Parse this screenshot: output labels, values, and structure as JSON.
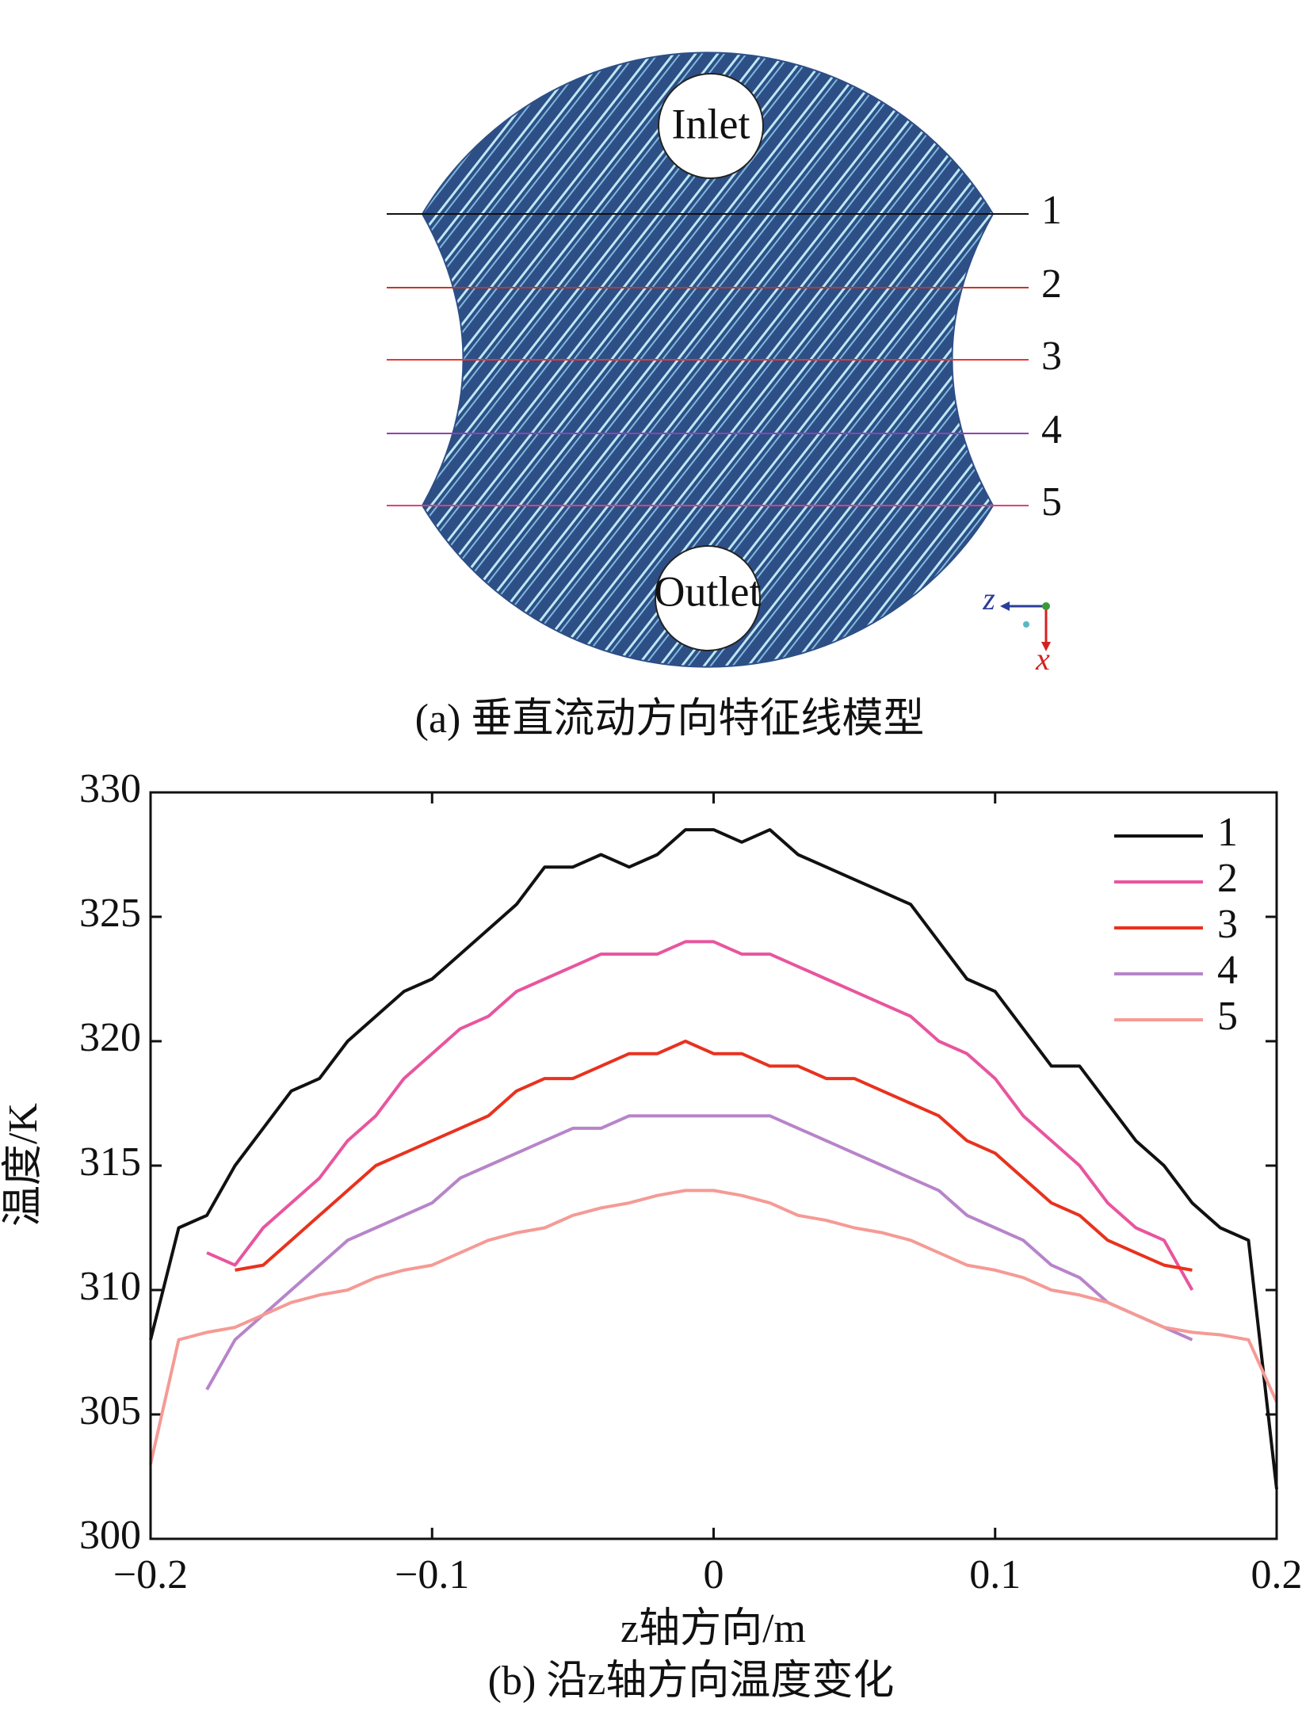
{
  "figure_a": {
    "labels": {
      "inlet": "Inlet",
      "outlet": "Outlet"
    },
    "lines": [
      {
        "label": "1",
        "color": "#111111"
      },
      {
        "label": "2",
        "color": "#c0392b"
      },
      {
        "label": "3",
        "color": "#e53935"
      },
      {
        "label": "4",
        "color": "#8e44ad"
      },
      {
        "label": "5",
        "color": "#e0407a"
      }
    ],
    "axes": {
      "z": "z",
      "x": "x"
    },
    "caption": "(a) 垂直流动方向特征线模型"
  },
  "chart_data": {
    "type": "line",
    "caption": "(b) 沿z轴方向温度变化",
    "xlabel": "z轴方向/m",
    "ylabel": "温度/K",
    "x": [
      -0.2,
      -0.19,
      -0.18,
      -0.17,
      -0.16,
      -0.15,
      -0.14,
      -0.13,
      -0.12,
      -0.11,
      -0.1,
      -0.09,
      -0.08,
      -0.07,
      -0.06,
      -0.05,
      -0.04,
      -0.03,
      -0.02,
      -0.01,
      0,
      0.01,
      0.02,
      0.03,
      0.04,
      0.05,
      0.06,
      0.07,
      0.08,
      0.09,
      0.1,
      0.11,
      0.12,
      0.13,
      0.14,
      0.15,
      0.16,
      0.17,
      0.18,
      0.19,
      0.2
    ],
    "series": [
      {
        "name": "1",
        "color": "#111111",
        "values": [
          308,
          312.5,
          313,
          315,
          316.5,
          318,
          318.5,
          320,
          321,
          322,
          322.5,
          323.5,
          324.5,
          325.5,
          327,
          327,
          327.5,
          327,
          327.5,
          328.5,
          328.5,
          328,
          328.5,
          327.5,
          327,
          326.5,
          326,
          325.5,
          324,
          322.5,
          322,
          320.5,
          319,
          319,
          317.5,
          316,
          315,
          313.5,
          312.5,
          312,
          302
        ]
      },
      {
        "name": "2",
        "color": "#e8559e",
        "values": [
          null,
          null,
          311.5,
          311,
          312.5,
          313.5,
          314.5,
          316,
          317,
          318.5,
          319.5,
          320.5,
          321,
          322,
          322.5,
          323,
          323.5,
          323.5,
          323.5,
          324,
          324,
          323.5,
          323.5,
          323,
          322.5,
          322,
          321.5,
          321,
          320,
          319.5,
          318.5,
          317,
          316,
          315,
          313.5,
          312.5,
          312,
          310,
          null,
          null,
          null
        ]
      },
      {
        "name": "3",
        "color": "#e8321e",
        "values": [
          null,
          null,
          null,
          310.8,
          311,
          312,
          313,
          314,
          315,
          315.5,
          316,
          316.5,
          317,
          318,
          318.5,
          318.5,
          319,
          319.5,
          319.5,
          320,
          319.5,
          319.5,
          319,
          319,
          318.5,
          318.5,
          318,
          317.5,
          317,
          316,
          315.5,
          314.5,
          313.5,
          313,
          312,
          311.5,
          311,
          310.8,
          null,
          null,
          null
        ]
      },
      {
        "name": "4",
        "color": "#b784c9",
        "values": [
          null,
          null,
          306,
          308,
          309,
          310,
          311,
          312,
          312.5,
          313,
          313.5,
          314.5,
          315,
          315.5,
          316,
          316.5,
          316.5,
          317,
          317,
          317,
          317,
          317,
          317,
          316.5,
          316,
          315.5,
          315,
          314.5,
          314,
          313,
          312.5,
          312,
          311,
          310.5,
          309.5,
          309,
          308.5,
          308,
          null,
          null,
          null
        ]
      },
      {
        "name": "5",
        "color": "#f59a95",
        "values": [
          303,
          308,
          308.3,
          308.5,
          309,
          309.5,
          309.8,
          310,
          310.5,
          310.8,
          311,
          311.5,
          312,
          312.3,
          312.5,
          313,
          313.3,
          313.5,
          313.8,
          314,
          314,
          313.8,
          313.5,
          313,
          312.8,
          312.5,
          312.3,
          312,
          311.5,
          311,
          310.8,
          310.5,
          310,
          309.8,
          309.5,
          309,
          308.5,
          308.3,
          308.2,
          308,
          305.5
        ]
      }
    ],
    "xlim": [
      -0.2,
      0.2
    ],
    "ylim": [
      300,
      330
    ],
    "xticks": [
      {
        "value": -0.2,
        "label": "−0.2"
      },
      {
        "value": -0.1,
        "label": "−0.1"
      },
      0,
      0.1,
      0.2
    ],
    "yticks": [
      300,
      305,
      310,
      315,
      320,
      325,
      330
    ],
    "legend": "upper right"
  }
}
